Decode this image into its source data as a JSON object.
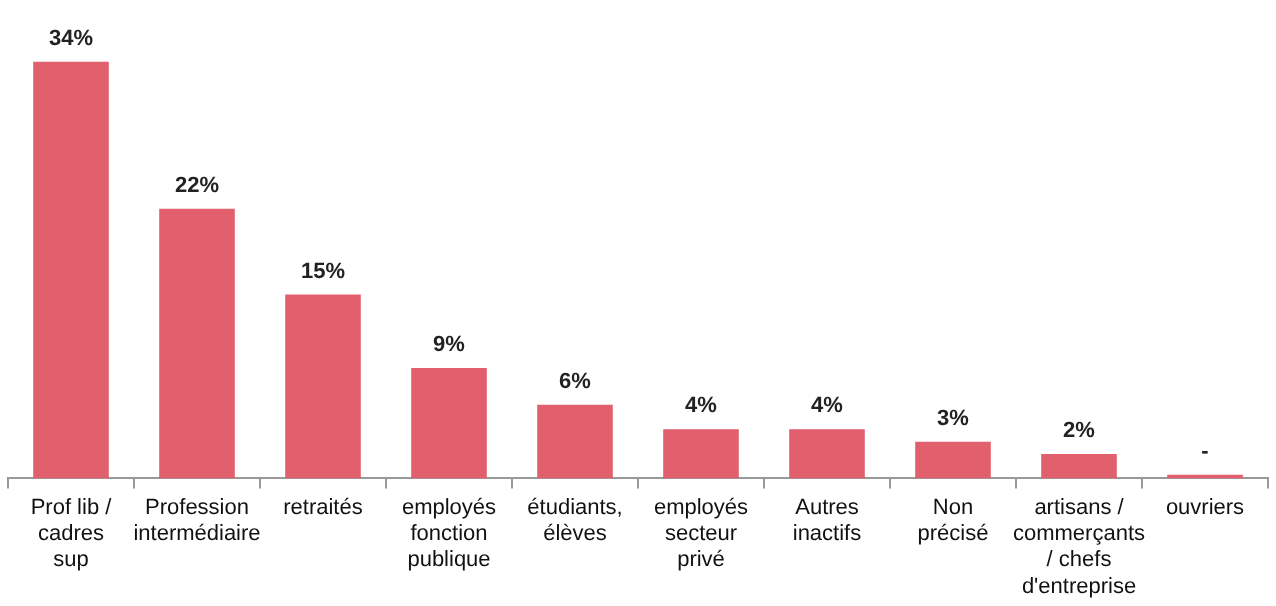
{
  "chart_data": {
    "type": "bar",
    "categories": [
      "Prof lib / cadres sup",
      "Profession intermédiaire",
      "retraités",
      "employés fonction publique",
      "étudiants, élèves",
      "employés secteur privé",
      "Autres inactifs",
      "Non précisé",
      "artisans / commerçants / chefs d'entreprise",
      "ouvriers"
    ],
    "values": [
      34,
      22,
      15,
      9,
      6,
      4,
      4,
      3,
      2,
      0.3
    ],
    "value_labels": [
      "34%",
      "22%",
      "15%",
      "9%",
      "6%",
      "4%",
      "4%",
      "3%",
      "2%",
      "-"
    ],
    "color": "#e2606e",
    "grid": false,
    "legend": false
  }
}
